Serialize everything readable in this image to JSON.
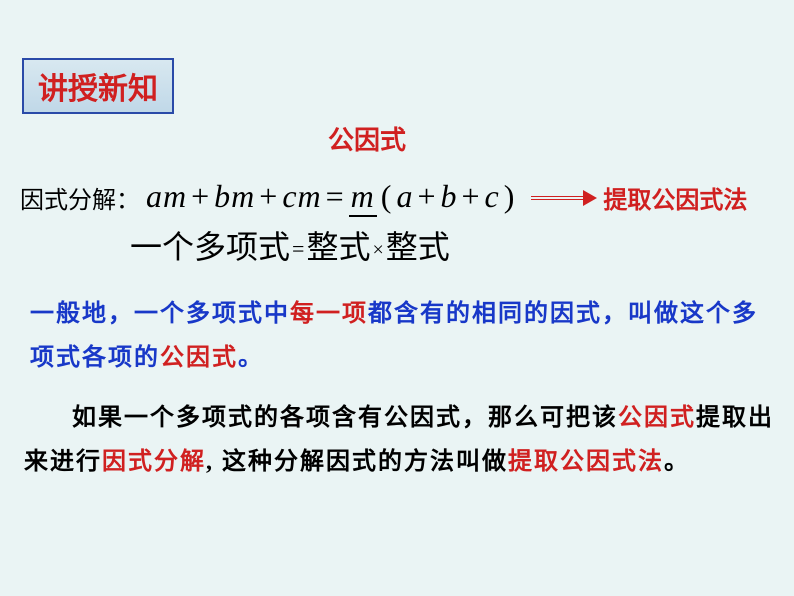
{
  "header": {
    "title": "讲授新知"
  },
  "labels": {
    "gongyinshi": "公因式",
    "yinshifenjie": "因式分解：",
    "method": "提取公因式法"
  },
  "formula": {
    "am": "am",
    "bm": "bm",
    "cm": "cm",
    "m": "m",
    "a": "a",
    "b": "b",
    "c": "c",
    "plus": "+",
    "eq": "=",
    "lparen": "(",
    "rparen": ")"
  },
  "line3": {
    "poly": "一个多项式",
    "eq": "=",
    "zheng1": "整式",
    "x": "×",
    "zheng2": "整式"
  },
  "para1": {
    "t1": "一般地，一个多项式中",
    "t2": "每一项",
    "t3": "都含有的相同的因式，叫做这个多项式各项的",
    "t4": "公因式",
    "t5": "。"
  },
  "para2": {
    "t1": "如果一个多项式的各项含有公因式，那么可把该",
    "t2": "公因式",
    "t3": "提取出来进行",
    "t4": "因式分解",
    "t5": ", 这种分解因式的方法叫做",
    "t6": "提取公因式法",
    "t7": "。"
  },
  "colors": {
    "background": "#eaf4f4",
    "red": "#d02020",
    "blue": "#1838c8",
    "border": "#2a4aa8"
  }
}
